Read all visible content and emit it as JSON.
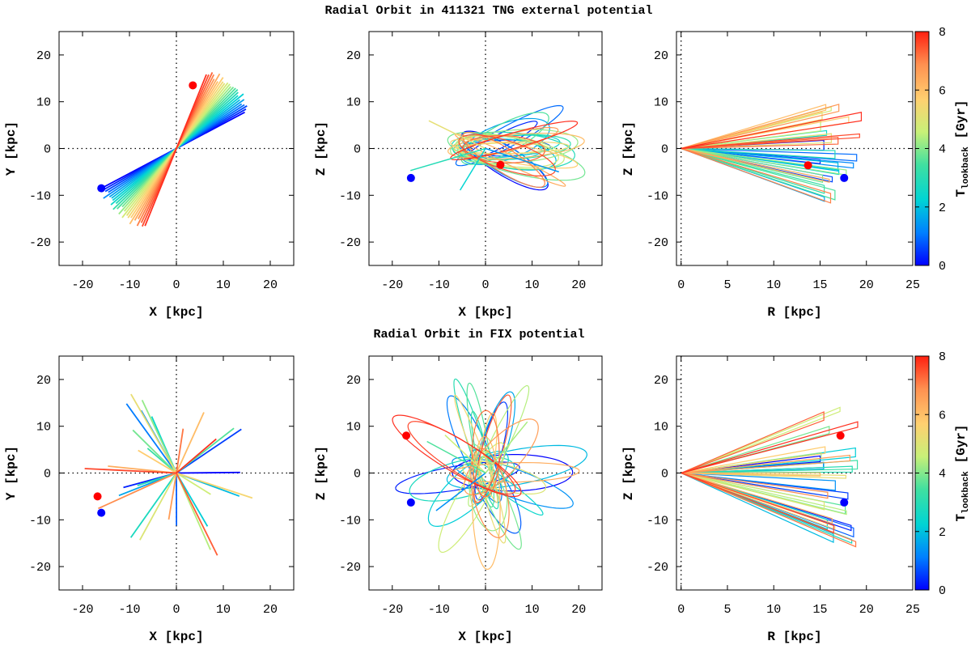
{
  "figure": {
    "rows": [
      {
        "title": "Radial Orbit in 411321 TNG external potential",
        "seed": 7,
        "mode": "tng"
      },
      {
        "title": "Radial Orbit in FIX potential",
        "seed": 13,
        "mode": "fix"
      }
    ]
  },
  "chart_data": [
    {
      "type": "line",
      "row": 0,
      "col": 0,
      "title": "Radial Orbit in 411321 TNG external potential",
      "xlabel": "X [kpc]",
      "ylabel": "Y [kpc]",
      "xlim": [
        -25,
        25
      ],
      "ylim": [
        -25,
        25
      ],
      "xticks": [
        -20,
        -10,
        0,
        10,
        20
      ],
      "yticks": [
        -20,
        -10,
        0,
        10,
        20
      ],
      "start_point": {
        "x": -16,
        "y": -8.5,
        "color": "#0000ff"
      },
      "end_point": {
        "x": 3.5,
        "y": 13.5,
        "color": "#ff0000"
      },
      "color_by": "T_lookback"
    },
    {
      "type": "line",
      "row": 0,
      "col": 1,
      "xlabel": "X [kpc]",
      "ylabel": "Z [kpc]",
      "xlim": [
        -25,
        25
      ],
      "ylim": [
        -25,
        25
      ],
      "xticks": [
        -20,
        -10,
        0,
        10,
        20
      ],
      "yticks": [
        -20,
        -10,
        0,
        10,
        20
      ],
      "start_point": {
        "x": -16,
        "y": -6.3,
        "color": "#0000ff"
      },
      "end_point": {
        "x": 3.2,
        "y": -3.5,
        "color": "#ff0000"
      },
      "color_by": "T_lookback"
    },
    {
      "type": "line",
      "row": 0,
      "col": 2,
      "xlabel": "R [kpc]",
      "ylabel": "Z [kpc]",
      "xlim": [
        -0.5,
        25
      ],
      "ylim": [
        -25,
        25
      ],
      "xticks": [
        0,
        5,
        10,
        15,
        20,
        25
      ],
      "yticks": [
        -20,
        -10,
        0,
        10,
        20
      ],
      "start_point": {
        "x": 17.6,
        "y": -6.3,
        "color": "#0000ff"
      },
      "end_point": {
        "x": 13.7,
        "y": -3.6,
        "color": "#ff0000"
      },
      "color_by": "T_lookback"
    },
    {
      "type": "line",
      "row": 1,
      "col": 0,
      "title": "Radial Orbit in FIX potential",
      "xlabel": "X [kpc]",
      "ylabel": "Y [kpc]",
      "xlim": [
        -25,
        25
      ],
      "ylim": [
        -25,
        25
      ],
      "xticks": [
        -20,
        -10,
        0,
        10,
        20
      ],
      "yticks": [
        -20,
        -10,
        0,
        10,
        20
      ],
      "start_point": {
        "x": -16,
        "y": -8.5,
        "color": "#0000ff"
      },
      "end_point": {
        "x": -16.8,
        "y": -5,
        "color": "#ff0000"
      },
      "color_by": "T_lookback"
    },
    {
      "type": "line",
      "row": 1,
      "col": 1,
      "xlabel": "X [kpc]",
      "ylabel": "Z [kpc]",
      "xlim": [
        -25,
        25
      ],
      "ylim": [
        -25,
        25
      ],
      "xticks": [
        -20,
        -10,
        0,
        10,
        20
      ],
      "yticks": [
        -20,
        -10,
        0,
        10,
        20
      ],
      "start_point": {
        "x": -16,
        "y": -6.3,
        "color": "#0000ff"
      },
      "end_point": {
        "x": -17,
        "y": 8,
        "color": "#ff0000"
      },
      "color_by": "T_lookback"
    },
    {
      "type": "line",
      "row": 1,
      "col": 2,
      "xlabel": "R [kpc]",
      "ylabel": "Z [kpc]",
      "xlim": [
        -0.5,
        25
      ],
      "ylim": [
        -25,
        25
      ],
      "xticks": [
        0,
        5,
        10,
        15,
        20,
        25
      ],
      "yticks": [
        -20,
        -10,
        0,
        10,
        20
      ],
      "start_point": {
        "x": 17.6,
        "y": -6.3,
        "color": "#0000ff"
      },
      "end_point": {
        "x": 17.2,
        "y": 8,
        "color": "#ff0000"
      },
      "color_by": "T_lookback"
    }
  ],
  "colorbar": {
    "label_main": "T",
    "label_sub": "lookback",
    "label_unit": " [Gyr]",
    "range": [
      0,
      8
    ],
    "ticks": [
      0,
      2,
      4,
      6,
      8
    ],
    "colormap": [
      "#0000ff",
      "#0080ff",
      "#00d4d4",
      "#40e0a0",
      "#c8f078",
      "#ffd070",
      "#ff9050",
      "#ff3020"
    ]
  }
}
